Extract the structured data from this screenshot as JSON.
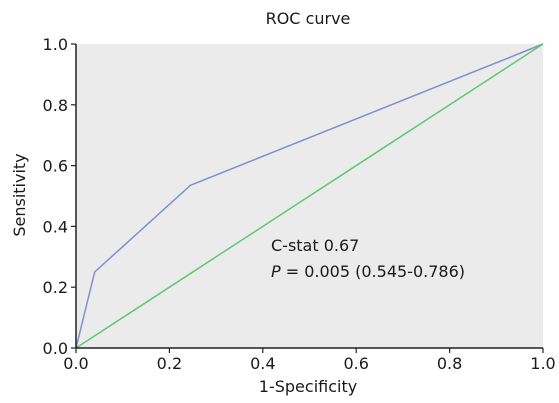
{
  "chart_data": {
    "type": "line",
    "title": "ROC curve",
    "xlabel": "1-Specificity",
    "ylabel": "Sensitivity",
    "xlim": [
      0.0,
      1.0
    ],
    "ylim": [
      0.0,
      1.0
    ],
    "x_ticks": [
      "0.0",
      "0.2",
      "0.4",
      "0.6",
      "0.8",
      "1.0"
    ],
    "y_ticks": [
      "0.0",
      "0.2",
      "0.4",
      "0.6",
      "0.8",
      "1.0"
    ],
    "grid": false,
    "background": "#ebebeb",
    "series": [
      {
        "color": "#7f8fd0",
        "points": [
          [
            0.0,
            0.0
          ],
          [
            0.04,
            0.25
          ],
          [
            0.245,
            0.535
          ],
          [
            1.0,
            1.0
          ]
        ]
      },
      {
        "color": "#5cc96e",
        "points": [
          [
            0.0,
            0.0
          ],
          [
            1.0,
            1.0
          ]
        ]
      }
    ],
    "annotations": {
      "cstat": "C-stat 0.67",
      "p_label": "P",
      "p_value": " = 0.005 (0.545-0.786)"
    }
  }
}
